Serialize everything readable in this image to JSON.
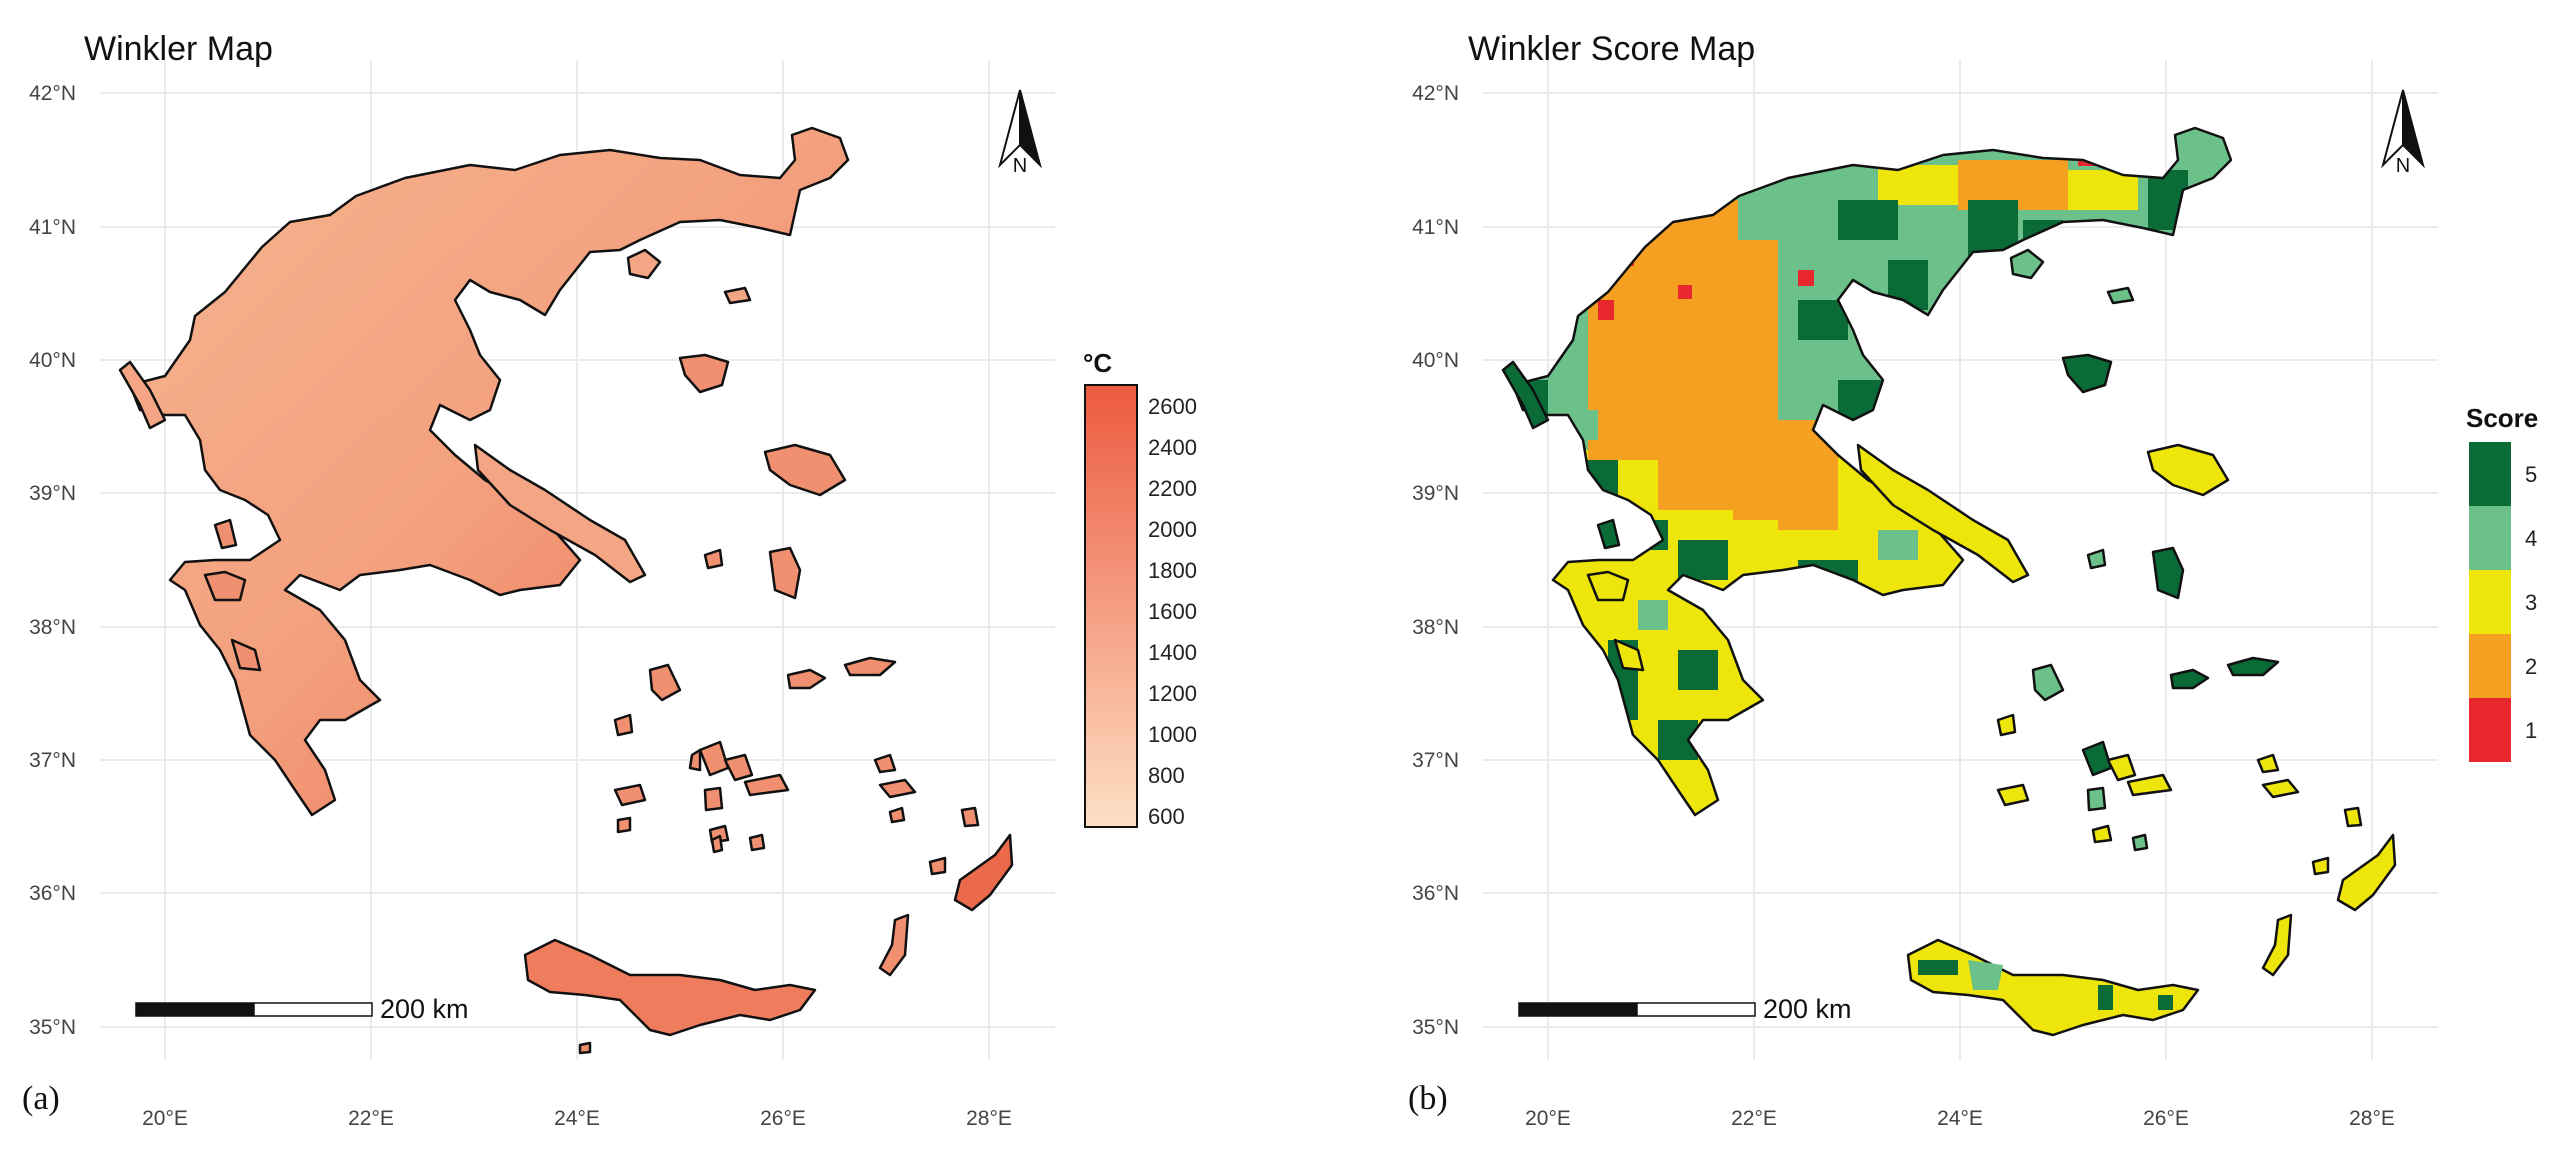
{
  "colors": {
    "winkler_low": "#fde0c5",
    "winkler_high": "#ec5a3f",
    "score_1": "#e8272e",
    "score_2": "#f5a020",
    "score_3": "#eee60a",
    "score_4": "#6cc18a",
    "score_5": "#0a6b37",
    "grid": "#ebebeb",
    "outline": "#111111"
  },
  "axes": {
    "lat_labels": [
      "42°N",
      "41°N",
      "40°N",
      "39°N",
      "38°N",
      "37°N",
      "36°N",
      "35°N"
    ],
    "lon_labels": [
      "20°E",
      "22°E",
      "24°E",
      "26°E",
      "28°E"
    ]
  },
  "panels": [
    {
      "id": "a",
      "title": "Winkler Map",
      "panel_label": "(a)",
      "north_letter": "N",
      "scale_label": "200 km",
      "legend": {
        "title": "°C",
        "ticks": [
          "2600",
          "2400",
          "2200",
          "2000",
          "1800",
          "1600",
          "1400",
          "1200",
          "1000",
          "800",
          "600"
        ]
      }
    },
    {
      "id": "b",
      "title": "Winkler Score Map",
      "panel_label": "(b)",
      "north_letter": "N",
      "scale_label": "200 km",
      "legend": {
        "title": "Score",
        "items": [
          "5",
          "4",
          "3",
          "2",
          "1"
        ]
      }
    }
  ]
}
